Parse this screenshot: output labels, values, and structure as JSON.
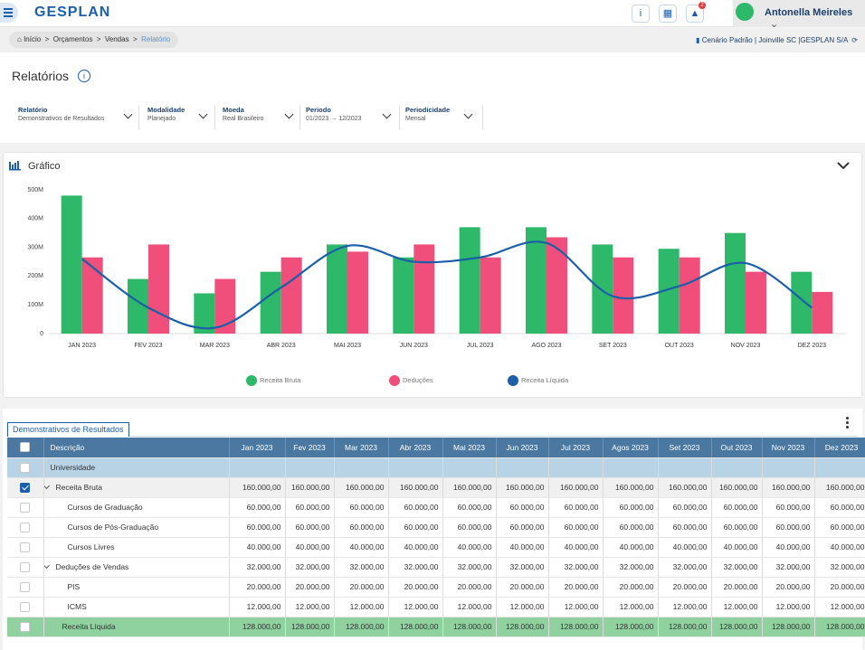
{
  "header": {
    "logo": "GESPLAN",
    "notification_count": 2,
    "user": "Antonella Meireles"
  },
  "breadcrumb": {
    "items": [
      "Início",
      "Orçamentos",
      "Vendas",
      "Relatório"
    ],
    "context": "Cenário Padrão | Joinville SC |GESPLAN S/A"
  },
  "page": {
    "title": "Relatórios"
  },
  "filters": [
    {
      "label": "Relatório",
      "value": "Demonstrativos de Resultados"
    },
    {
      "label": "Modalidade",
      "value": "Planejado"
    },
    {
      "label": "Moeda",
      "value": "Real Brasileiro"
    },
    {
      "label": "Periodo",
      "from": "01/2023",
      "to": "12/2023"
    },
    {
      "label": "Periodicidade",
      "value": "Mensal"
    }
  ],
  "chart_panel": {
    "title": "Gráfico"
  },
  "chart_data": {
    "type": "bar",
    "categories": [
      "JAN 2023",
      "FEV 2023",
      "MAR 2023",
      "ABR 2023",
      "MAI 2023",
      "JUN 2023",
      "JUL 2023",
      "AGO 2023",
      "SET 2023",
      "OUT 2023",
      "NOV 2023",
      "DEZ 2023"
    ],
    "series": [
      {
        "name": "Receita Bruta",
        "type": "bar",
        "color": "#2db86a",
        "values": [
          480000000,
          190000000,
          140000000,
          215000000,
          310000000,
          265000000,
          370000000,
          370000000,
          310000000,
          295000000,
          350000000,
          215000000
        ]
      },
      {
        "name": "Deduções",
        "type": "bar",
        "color": "#ef4f7a",
        "values": [
          265000000,
          310000000,
          190000000,
          265000000,
          285000000,
          310000000,
          265000000,
          335000000,
          265000000,
          265000000,
          215000000,
          145000000
        ]
      },
      {
        "name": "Receita Líquida",
        "type": "line",
        "color": "#1a5fa8",
        "values": [
          260000000,
          90000000,
          20000000,
          160000000,
          305000000,
          250000000,
          265000000,
          315000000,
          130000000,
          165000000,
          245000000,
          90000000
        ]
      }
    ],
    "ylim": [
      0,
      500000000
    ],
    "yticks": [
      0,
      {
        "value": 100000000,
        "label": "100M"
      },
      {
        "value": 200000000,
        "label": "200M"
      },
      {
        "value": 300000000,
        "label": "300M"
      },
      {
        "value": 400000000,
        "label": "400M"
      },
      {
        "value": 500000000,
        "label": "500M"
      }
    ],
    "grid": false,
    "legend": "bottom"
  },
  "table": {
    "tab": "Demonstrativos de Resultados",
    "columns": [
      "Descrição",
      "Jan 2023",
      "Fev 2023",
      "Mar 2023",
      "Abr 2023",
      "Mai 2023",
      "Jun 2023",
      "Jul 2023",
      "Agos 2023",
      "Set 2023",
      "Out 2023",
      "Nov 2023",
      "Dez 2023"
    ],
    "rows": [
      {
        "label": "Universidade"
      },
      {
        "label": "Receita Bruta",
        "values": [
          "160.000,00",
          "160.000,00",
          "160.000,00",
          "160.000,00",
          "160.000,00",
          "160.000,00",
          "160.000,00",
          "160.000,00",
          "160.000,00",
          "160.000,00",
          "160.000,00",
          "160.000,00"
        ]
      },
      {
        "label": "Cursos de Graduação",
        "values": [
          "60.000,00",
          "60.000,00",
          "60.000,00",
          "60.000,00",
          "60.000,00",
          "60.000,00",
          "60.000,00",
          "60.000,00",
          "60.000,00",
          "60.000,00",
          "60.000,00",
          "60.000,00"
        ]
      },
      {
        "label": "Cursos de Pós-Graduação",
        "values": [
          "60.000,00",
          "60.000,00",
          "60.000,00",
          "60.000,00",
          "60.000,00",
          "60.000,00",
          "60.000,00",
          "60.000,00",
          "60.000,00",
          "60.000,00",
          "60.000,00",
          "60.000,00"
        ]
      },
      {
        "label": "Cursos Livres",
        "values": [
          "40.000,00",
          "40.000,00",
          "40.000,00",
          "40.000,00",
          "40.000,00",
          "40.000,00",
          "40.000,00",
          "40.000,00",
          "40.000,00",
          "40.000,00",
          "40.000,00",
          "40.000,00"
        ]
      },
      {
        "label": "Deduções de Vendas",
        "values": [
          "32.000,00",
          "32.000,00",
          "32.000,00",
          "32.000,00",
          "32.000,00",
          "32.000,00",
          "32.000,00",
          "32.000,00",
          "32.000,00",
          "32.000,00",
          "32.000,00",
          "32.000,00"
        ]
      },
      {
        "label": "PIS",
        "values": [
          "20.000,00",
          "20.000,00",
          "20.000,00",
          "20.000,00",
          "20.000,00",
          "20.000,00",
          "20.000,00",
          "20.000,00",
          "20.000,00",
          "20.000,00",
          "20.000,00",
          "20.000,00"
        ]
      },
      {
        "label": "ICMS",
        "values": [
          "12.000,00",
          "12.000,00",
          "12.000,00",
          "12.000,00",
          "12.000,00",
          "12.000,00",
          "12.000,00",
          "12.000,00",
          "12.000,00",
          "12.000,00",
          "12.000,00",
          "12.000,00"
        ]
      },
      {
        "label": "Receita Líquida",
        "values": [
          "128.000,00",
          "128.000,00",
          "128.000,00",
          "128.000,00",
          "128.000,00",
          "128.000,00",
          "128.000,00",
          "128.000,00",
          "128.000,00",
          "128.000,00",
          "128.000,00",
          "128.000,00"
        ]
      }
    ]
  }
}
